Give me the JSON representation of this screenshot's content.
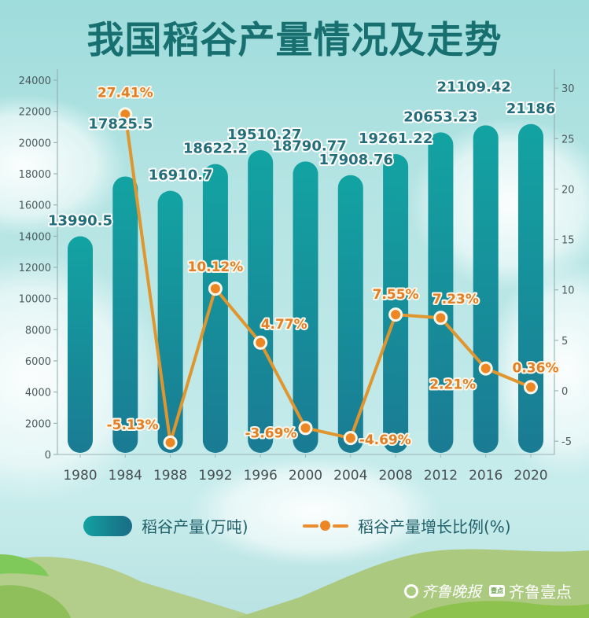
{
  "title": "我国稻谷产量情况及走势",
  "colors": {
    "title": "#17706f",
    "bar_top": "#13a3a2",
    "bar_bottom": "#1a7b93",
    "line": "#e0962f",
    "point": "#ec8723",
    "bar_label": "#236e7b",
    "pct_label": "#e27e24"
  },
  "legend": {
    "bar_label": "稻谷产量(万吨)",
    "line_label": "稻谷产量增长比例(%)"
  },
  "footer": {
    "brand1": "齐鲁晚报",
    "badge": "壹点",
    "brand2": "齐鲁壹点"
  },
  "chart_data": {
    "type": "bar",
    "title": "我国稻谷产量情况及走势",
    "xlabel": "",
    "ylabel": "稻谷产量(万吨)",
    "y2label": "稻谷产量增长比例(%)",
    "categories": [
      "1980",
      "1984",
      "1988",
      "1992",
      "1996",
      "2000",
      "2004",
      "2008",
      "2012",
      "2016",
      "2020"
    ],
    "series": [
      {
        "name": "稻谷产量(万吨)",
        "type": "bar",
        "axis": "left",
        "values": [
          13990.5,
          17825.5,
          16910.7,
          18622.2,
          19510.27,
          18790.77,
          17908.76,
          19261.22,
          20653.23,
          21109.42,
          21186
        ],
        "labels": [
          "13990.5",
          "17825.5",
          "16910.7",
          "18622.2",
          "19510.27",
          "18790.77",
          "17908.76",
          "19261.22",
          "20653.23",
          "21109.42",
          "21186"
        ]
      },
      {
        "name": "稻谷产量增长比例(%)",
        "type": "line",
        "axis": "right",
        "categories": [
          "1984",
          "1988",
          "1992",
          "1996",
          "2000",
          "2004",
          "2008",
          "2012",
          "2016",
          "2020"
        ],
        "values": [
          27.41,
          -5.13,
          10.12,
          4.77,
          -3.69,
          -4.69,
          7.55,
          7.23,
          2.21,
          0.36
        ],
        "labels": [
          "27.41%",
          "-5.13%",
          "10.12%",
          "4.77%",
          "-3.69%",
          "-4.69%",
          "7.55%",
          "7.23%",
          "2.21%",
          "0.36%"
        ]
      }
    ],
    "ylim": [
      0,
      24000
    ],
    "yticks": [
      0,
      2000,
      4000,
      6000,
      8000,
      10000,
      12000,
      14000,
      16000,
      18000,
      20000,
      22000,
      24000
    ],
    "y2lim": [
      -5,
      30
    ],
    "y2ticks": [
      -5,
      0,
      5,
      10,
      15,
      20,
      25,
      30
    ],
    "grid": false,
    "legend_position": "bottom"
  }
}
